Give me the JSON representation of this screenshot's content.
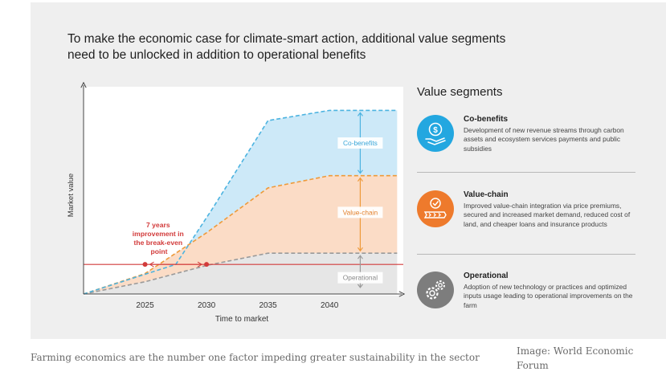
{
  "caption": "Farming economics are the number one factor impeding greater sustainability in the sector",
  "credit": "Image: World Economic Forum",
  "chart_data": {
    "type": "area",
    "title": "To make the economic case for climate-smart action, additional value segments need to be unlocked in addition to operational benefits",
    "xlabel": "Time to market",
    "ylabel": "Market value",
    "x_ticks": [
      2025,
      2030,
      2035,
      2040
    ],
    "xlim": [
      2020,
      2046
    ],
    "ylim": [
      0,
      100
    ],
    "grid": false,
    "series": [
      {
        "name": "Operational",
        "color": "#9a9a9a",
        "x": [
          2020,
          2025,
          2030,
          2035,
          2040,
          2045.5
        ],
        "values": [
          0,
          6,
          14,
          20,
          20,
          20
        ]
      },
      {
        "name": "Value-chain",
        "color": "#ee9a3a",
        "x": [
          2020,
          2025,
          2030,
          2035,
          2040,
          2045.5
        ],
        "values": [
          0,
          10,
          30,
          52,
          58,
          58
        ]
      },
      {
        "name": "Co-benefits",
        "color": "#4cb3e0",
        "x": [
          2020,
          2027.5,
          2030.5,
          2035,
          2040,
          2045.5
        ],
        "values": [
          0,
          14.5,
          42,
          85,
          90,
          90
        ]
      }
    ],
    "break_even": {
      "value": 14.5,
      "from": 2025,
      "to": 2030
    },
    "annotations": [
      {
        "text": "7 years improvement in the break-even point",
        "color": "#d23b3b"
      }
    ],
    "segment_labels": [
      {
        "text": "Co-benefits",
        "x": 2042.5,
        "y": 74
      },
      {
        "text": "Value-chain",
        "x": 2042.5,
        "y": 40
      },
      {
        "text": "Operational",
        "x": 2042.5,
        "y": 8
      }
    ],
    "arrows": [
      {
        "x": 2042.5,
        "y0": 58,
        "y1": 90,
        "color": "#4cb3e0"
      },
      {
        "x": 2042.5,
        "y0": 20,
        "y1": 58,
        "color": "#ee9a3a"
      },
      {
        "x": 2042.5,
        "y0": 2,
        "y1": 20,
        "color": "#9a9a9a"
      }
    ],
    "colors": {
      "co_benefits_fill": "#cde9f8",
      "value_chain_fill": "#fbdcc6",
      "operational_fill": "#e6e6e6",
      "break_even_line": "#d23b3b"
    }
  },
  "legend": {
    "title": "Value segments",
    "items": [
      {
        "name": "Co-benefits",
        "desc": "Development of new revenue streams through carbon assets and ecosystem services payments and public subsidies",
        "color": "#23a7e0",
        "icon": "money-hand-icon"
      },
      {
        "name": "Value-chain",
        "desc": "Improved value-chain integration via price premiums, secured and increased market demand, reduced cost of land, and cheaper loans and insurance products",
        "color": "#ee7a2c",
        "icon": "value-chain-icon"
      },
      {
        "name": "Operational",
        "desc": "Adoption of new technology or practices and optimized inputs usage leading to operational improvements on the farm",
        "color": "#7d7d7d",
        "icon": "gears-icon"
      }
    ]
  }
}
